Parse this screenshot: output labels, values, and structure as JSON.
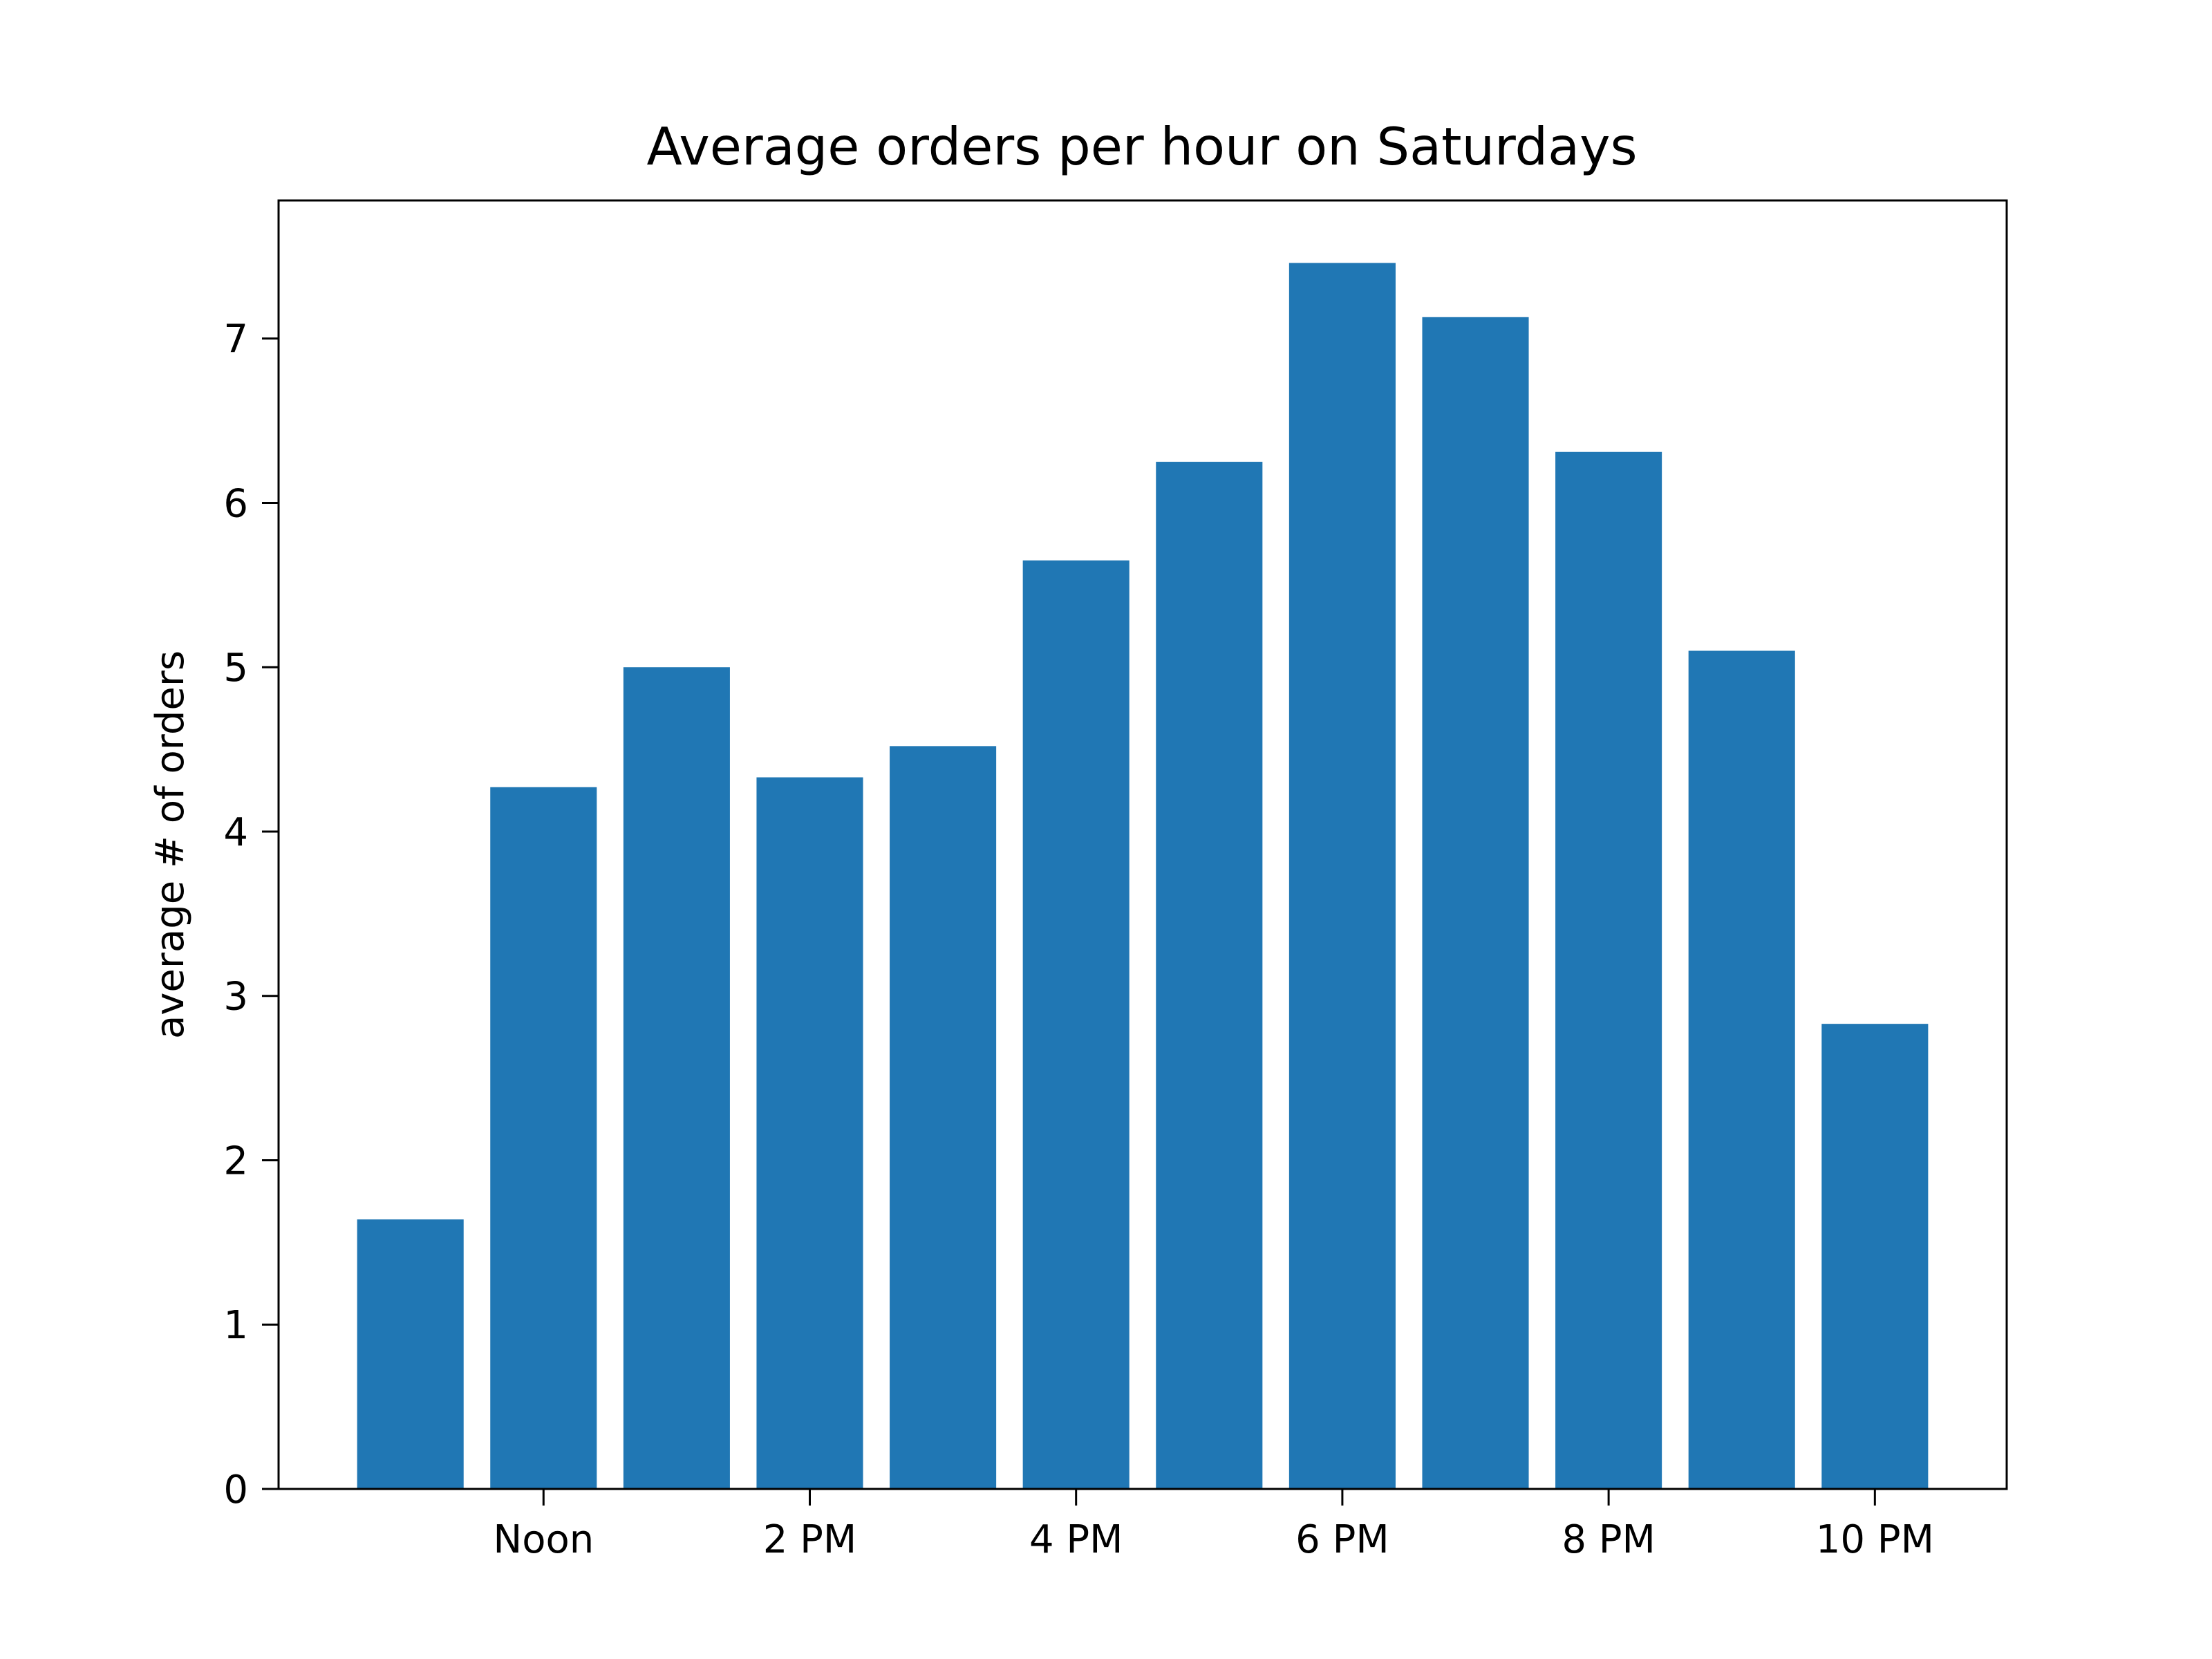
{
  "chart_data": {
    "type": "bar",
    "title": "Average orders per hour on Saturdays",
    "xlabel": "",
    "ylabel": "average # of orders",
    "x": [
      11,
      12,
      13,
      14,
      15,
      16,
      17,
      18,
      19,
      20,
      21,
      22
    ],
    "values": [
      1.64,
      4.27,
      5.0,
      4.33,
      4.52,
      5.65,
      6.25,
      7.46,
      7.13,
      6.31,
      5.1,
      2.83
    ],
    "xticks": [
      {
        "x": 12,
        "label": "Noon"
      },
      {
        "x": 14,
        "label": "2 PM"
      },
      {
        "x": 16,
        "label": "4 PM"
      },
      {
        "x": 18,
        "label": "6 PM"
      },
      {
        "x": 20,
        "label": "8 PM"
      },
      {
        "x": 22,
        "label": "10 PM"
      }
    ],
    "yticks": [
      0,
      1,
      2,
      3,
      4,
      5,
      6,
      7
    ],
    "xlim": [
      10.01,
      22.99
    ],
    "ylim": [
      0,
      7.84
    ],
    "bar_width": 0.8,
    "bar_color": "#2077b4",
    "grid": false,
    "legend": "none"
  }
}
